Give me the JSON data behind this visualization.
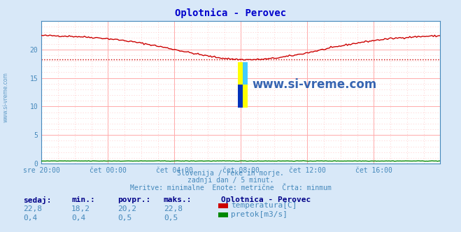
{
  "title": "Oplotnica - Perovec",
  "background_color": "#d8e8f8",
  "plot_bg_color": "#ffffff",
  "grid_color_major": "#ffaaaa",
  "grid_color_minor": "#ffcccc",
  "xlabel_ticks": [
    "sre 20:00",
    "čet 00:00",
    "čet 04:00",
    "čet 08:00",
    "čet 12:00",
    "čet 16:00"
  ],
  "x_tick_positions": [
    0,
    48,
    96,
    144,
    192,
    240
  ],
  "ylabel_values": [
    0,
    5,
    10,
    15,
    20
  ],
  "ylim": [
    0,
    25
  ],
  "xlim": [
    0,
    288
  ],
  "temp_color": "#cc0000",
  "flow_color": "#008800",
  "min_line_color": "#cc0000",
  "min_value": 18.2,
  "subtitle_lines": [
    "Slovenija / reke in morje.",
    "zadnji dan / 5 minut.",
    "Meritve: minimalne  Enote: metrične  Črta: minmum"
  ],
  "legend_title": "Oplotnica - Perovec",
  "legend_entries": [
    {
      "label": "temperatura[C]",
      "color": "#cc0000"
    },
    {
      "label": "pretok[m3/s]",
      "color": "#008800"
    }
  ],
  "stats_headers": [
    "sedaj:",
    "min.:",
    "povpr.:",
    "maks.:"
  ],
  "stats_temp": [
    "22,8",
    "18,2",
    "20,2",
    "22,8"
  ],
  "stats_flow": [
    "0,4",
    "0,4",
    "0,5",
    "0,5"
  ],
  "watermark": "www.si-vreme.com",
  "watermark_color": "#2255aa",
  "title_color": "#0000cc",
  "subtitle_color": "#4488bb",
  "stats_header_color": "#000088",
  "tick_color": "#4488bb",
  "spine_color": "#4488bb",
  "arrow_color": "#cc0000",
  "left_label_color": "#4488bb"
}
